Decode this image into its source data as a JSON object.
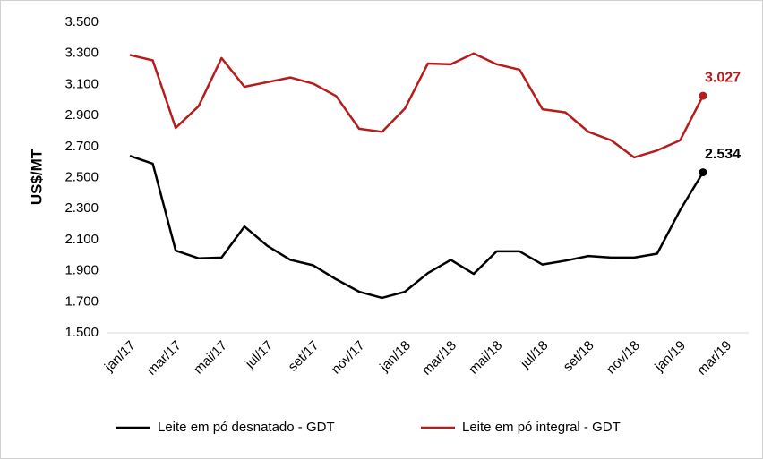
{
  "chart_data": {
    "type": "line",
    "ylabel": "US$/MT",
    "categories": [
      "jan/17",
      null,
      "mar/17",
      null,
      "mai/17",
      null,
      "jul/17",
      null,
      "set/17",
      null,
      "nov/17",
      null,
      "jan/18",
      null,
      "mar/18",
      null,
      "mai/18",
      null,
      "jul/18",
      null,
      "set/18",
      null,
      "nov/18",
      null,
      "jan/19",
      null,
      "mar/19"
    ],
    "series": [
      {
        "name": "Leite em pó desnatado - GDT",
        "color": "#000000",
        "values": [
          2640,
          2590,
          2030,
          1980,
          1985,
          2185,
          2060,
          1970,
          1935,
          1845,
          1765,
          1725,
          1765,
          1885,
          1970,
          1880,
          2025,
          2025,
          1940,
          1965,
          1995,
          1985,
          1985,
          2010,
          2290,
          2534,
          null
        ],
        "value_labels": [
          null,
          null,
          null,
          null,
          null,
          null,
          null,
          null,
          null,
          null,
          null,
          null,
          null,
          null,
          null,
          null,
          null,
          null,
          null,
          null,
          null,
          null,
          null,
          null,
          null,
          "2.534",
          null
        ]
      },
      {
        "name": "Leite em pó integral - GDT",
        "color": "#b71c1c",
        "values": [
          3290,
          3255,
          2820,
          2960,
          3270,
          3085,
          3115,
          3145,
          3105,
          3025,
          2815,
          2795,
          2945,
          3235,
          3230,
          3300,
          3230,
          3195,
          2940,
          2920,
          2795,
          2740,
          2630,
          2675,
          2740,
          3027,
          null
        ],
        "value_labels": [
          null,
          null,
          null,
          null,
          null,
          null,
          null,
          null,
          null,
          null,
          null,
          null,
          null,
          null,
          null,
          null,
          null,
          null,
          null,
          null,
          null,
          null,
          null,
          null,
          null,
          "3.027",
          null
        ]
      }
    ],
    "ylim": [
      1500,
      3500
    ],
    "yticks": [
      {
        "value": 1500,
        "label": "1.500"
      },
      {
        "value": 1700,
        "label": "1.700"
      },
      {
        "value": 1900,
        "label": "1.900"
      },
      {
        "value": 2100,
        "label": "2.100"
      },
      {
        "value": 2300,
        "label": "2.300"
      },
      {
        "value": 2500,
        "label": "2.500"
      },
      {
        "value": 2700,
        "label": "2.700"
      },
      {
        "value": 2900,
        "label": "2.900"
      },
      {
        "value": 3100,
        "label": "3.100"
      },
      {
        "value": 3300,
        "label": "3.300"
      },
      {
        "value": 3500,
        "label": "3.500"
      }
    ],
    "legend": "bottom"
  }
}
